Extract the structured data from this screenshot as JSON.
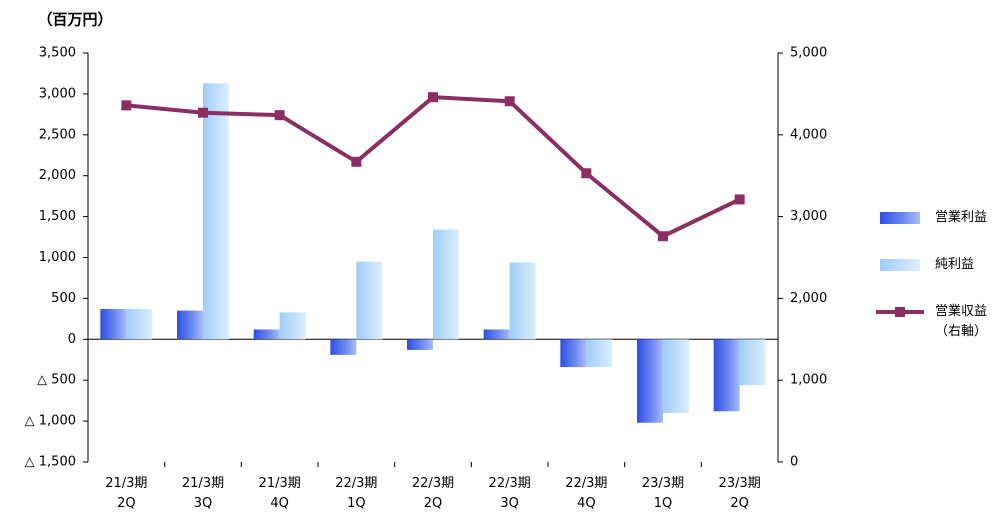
{
  "chart_data": {
    "type": "bar_line",
    "unit_label": "（百万円）",
    "categories": [
      "21/3期\n2Q",
      "21/3期\n3Q",
      "21/3期\n4Q",
      "22/3期\n1Q",
      "22/3期\n2Q",
      "22/3期\n3Q",
      "22/3期\n4Q",
      "23/3期\n1Q",
      "23/3期\n2Q"
    ],
    "series": [
      {
        "name": "営業利益",
        "color": "#4a6cf0",
        "kind": "bar",
        "values": [
          370,
          350,
          120,
          -190,
          -130,
          120,
          -340,
          -1020,
          -880
        ]
      },
      {
        "name": "純利益",
        "color": "#b9dcfa",
        "kind": "bar",
        "values": [
          370,
          3130,
          330,
          950,
          1340,
          940,
          -340,
          -900,
          -560
        ]
      },
      {
        "name": "営業収益\n（右軸）",
        "color": "#8b2f62",
        "kind": "line",
        "axis": "y2",
        "values": [
          4360,
          4270,
          4240,
          3670,
          4460,
          4410,
          3530,
          2760,
          3210
        ]
      }
    ],
    "ylim": [
      -1500,
      3500
    ],
    "yticks": [
      {
        "value": -1500,
        "label": "△ 1,500"
      },
      {
        "value": -1000,
        "label": "△ 1,000"
      },
      {
        "value": -500,
        "label": "△ 500"
      },
      0,
      {
        "value": 500,
        "label": "500"
      },
      {
        "value": 1000,
        "label": "1,000"
      },
      {
        "value": 1500,
        "label": "1,500"
      },
      {
        "value": 2000,
        "label": "2,000"
      },
      {
        "value": 2500,
        "label": "2,500"
      },
      {
        "value": 3000,
        "label": "3,000"
      },
      {
        "value": 3500,
        "label": "3,500"
      }
    ],
    "y2lim": [
      0,
      5000
    ],
    "y2ticks": [
      0,
      {
        "value": 1000,
        "label": "1,000"
      },
      {
        "value": 2000,
        "label": "2,000"
      },
      {
        "value": 3000,
        "label": "3,000"
      },
      {
        "value": 4000,
        "label": "4,000"
      },
      {
        "value": 5000,
        "label": "5,000"
      }
    ],
    "legend": "right"
  }
}
